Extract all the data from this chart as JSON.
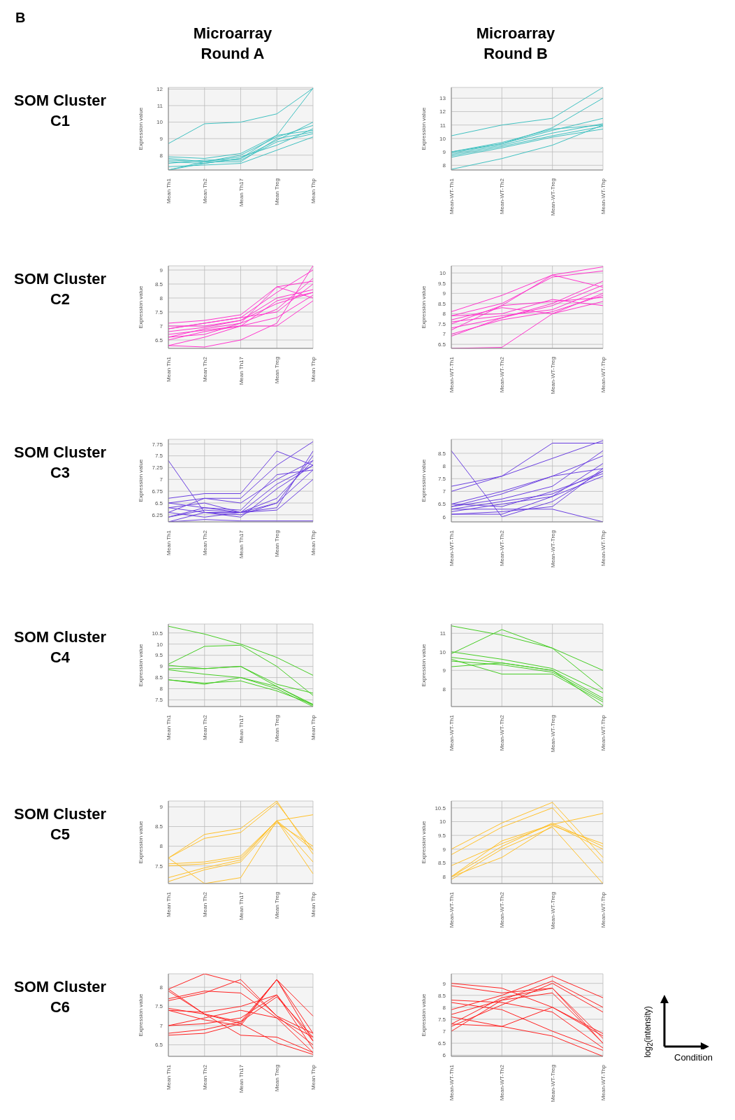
{
  "chart_data": [
    {
      "type": "line",
      "title": "Microarray Round A",
      "annotations": [
        "B",
        "SOM Cluster C1"
      ],
      "ylabel": "Expression value",
      "grid": true,
      "categories": [
        "Mean Th1",
        "Mean Th2",
        "Mean Th17",
        "Mean Treg",
        "Mean Thp"
      ],
      "ylim": [
        7.1,
        12.1
      ],
      "yticks": [
        8,
        9,
        10,
        11,
        12
      ],
      "series": [
        {
          "color": "#3fc0c0",
          "values": [
            8.7,
            9.9,
            10,
            10.5,
            12.05
          ]
        },
        {
          "color": "#3fc0c0",
          "values": [
            7.1,
            7.5,
            7.8,
            9.2,
            12.05
          ]
        },
        {
          "color": "#3fc0c0",
          "values": [
            7.9,
            7.8,
            8.1,
            9.2,
            9.5
          ]
        },
        {
          "color": "#3fc0c0",
          "values": [
            7.7,
            7.6,
            8,
            9.1,
            9.8
          ]
        },
        {
          "color": "#3fc0c0",
          "values": [
            7.6,
            7.5,
            7.8,
            8.9,
            10
          ]
        },
        {
          "color": "#3fc0c0",
          "values": [
            7.5,
            7.7,
            7.7,
            8.8,
            9.3
          ]
        },
        {
          "color": "#3fc0c0",
          "values": [
            7.3,
            7.4,
            7.5,
            8.3,
            9.1
          ]
        },
        {
          "color": "#3fc0c0",
          "values": [
            7.8,
            7.6,
            7.9,
            8.6,
            9.6
          ]
        },
        {
          "color": "#3fc0c0",
          "values": [
            7.1,
            7.6,
            7.6,
            9,
            9.4
          ]
        }
      ]
    },
    {
      "type": "line",
      "title": "Microarray Round B",
      "ylabel": "Expression value",
      "grid": true,
      "categories": [
        "Mean-WT-Th1",
        "Mean-WT-Th2",
        "Mean-WT-Treg",
        "Mean-WT-Thp"
      ],
      "ylim": [
        7.65,
        13.8
      ],
      "yticks": [
        8,
        9,
        10,
        11,
        12,
        13
      ],
      "series": [
        {
          "color": "#3fc0c0",
          "values": [
            10.2,
            11,
            11.5,
            13.8
          ]
        },
        {
          "color": "#3fc0c0",
          "values": [
            9,
            9.6,
            10.8,
            13
          ]
        },
        {
          "color": "#3fc0c0",
          "values": [
            8.9,
            9.6,
            10.6,
            11.5
          ]
        },
        {
          "color": "#3fc0c0",
          "values": [
            8.8,
            9.5,
            10.4,
            11.1
          ]
        },
        {
          "color": "#3fc0c0",
          "values": [
            8.7,
            9.4,
            10.2,
            10.9
          ]
        },
        {
          "color": "#3fc0c0",
          "values": [
            8.6,
            9.3,
            10.1,
            10.7
          ]
        },
        {
          "color": "#3fc0c0",
          "values": [
            9,
            9.7,
            10.7,
            11
          ]
        },
        {
          "color": "#3fc0c0",
          "values": [
            7.7,
            8.5,
            9.5,
            11
          ]
        }
      ]
    },
    {
      "type": "line",
      "annotations": [
        "SOM Cluster C2"
      ],
      "ylabel": "Expression value",
      "grid": true,
      "categories": [
        "Mean Th1",
        "Mean Th2",
        "Mean Th17",
        "Mean Treg",
        "Mean Thp"
      ],
      "ylim": [
        6.2,
        9.15
      ],
      "yticks": [
        6.5,
        7,
        7.5,
        8,
        8.5,
        9
      ],
      "series": [
        {
          "color": "#ff33cc",
          "values": [
            6.3,
            6.25,
            6.5,
            7.1,
            9.15
          ]
        },
        {
          "color": "#ff33cc",
          "values": [
            7.1,
            7.2,
            7.4,
            8.4,
            8.6
          ]
        },
        {
          "color": "#ff33cc",
          "values": [
            6.9,
            7.1,
            7.3,
            8.2,
            9
          ]
        },
        {
          "color": "#ff33cc",
          "values": [
            6.8,
            6.95,
            7.2,
            8,
            8.3
          ]
        },
        {
          "color": "#ff33cc",
          "values": [
            6.6,
            6.9,
            7.1,
            7.6,
            8.7
          ]
        },
        {
          "color": "#ff33cc",
          "values": [
            6.7,
            6.85,
            7,
            7.3,
            8.1
          ]
        },
        {
          "color": "#ff33cc",
          "values": [
            6.5,
            6.8,
            7,
            7,
            7.9
          ]
        },
        {
          "color": "#ff33cc",
          "values": [
            7,
            7,
            7.2,
            7.8,
            8.2
          ]
        },
        {
          "color": "#ff33cc",
          "values": [
            6.6,
            6.7,
            7.1,
            8.4,
            8
          ]
        },
        {
          "color": "#ff33cc",
          "values": [
            6.9,
            7.1,
            7.3,
            7.5,
            8.5
          ]
        },
        {
          "color": "#ff33cc",
          "values": [
            6.3,
            6.6,
            7,
            7.9,
            8.2
          ]
        }
      ]
    },
    {
      "type": "line",
      "ylabel": "Expression value",
      "grid": true,
      "categories": [
        "Mean-WT-Th1",
        "Mean-WT-Th2",
        "Mean-WT-Treg",
        "Mean-WT-Thp"
      ],
      "ylim": [
        6.3,
        10.35
      ],
      "yticks": [
        6.5,
        7,
        7.5,
        8,
        8.5,
        9,
        9.5,
        10
      ],
      "series": [
        {
          "color": "#ff33cc",
          "values": [
            6.3,
            6.35,
            8,
            8.6
          ]
        },
        {
          "color": "#ff33cc",
          "values": [
            8.1,
            8.9,
            9.9,
            10.3
          ]
        },
        {
          "color": "#ff33cc",
          "values": [
            7.9,
            8.5,
            9.8,
            10.1
          ]
        },
        {
          "color": "#ff33cc",
          "values": [
            7.5,
            8.4,
            9.9,
            9.3
          ]
        },
        {
          "color": "#ff33cc",
          "values": [
            7.9,
            8,
            8.7,
            8.4
          ]
        },
        {
          "color": "#ff33cc",
          "values": [
            7.6,
            7.9,
            8.2,
            9.2
          ]
        },
        {
          "color": "#ff33cc",
          "values": [
            7.3,
            7.8,
            8.5,
            9.6
          ]
        },
        {
          "color": "#ff33cc",
          "values": [
            7,
            7.7,
            8.1,
            8.9
          ]
        },
        {
          "color": "#ff33cc",
          "values": [
            6.9,
            7.8,
            8.4,
            9.4
          ]
        },
        {
          "color": "#ff33cc",
          "values": [
            7.7,
            8.3,
            8,
            9
          ]
        },
        {
          "color": "#ff33cc",
          "values": [
            7.2,
            8.4,
            8.6,
            8.8
          ]
        }
      ]
    },
    {
      "type": "line",
      "annotations": [
        "SOM Cluster C3"
      ],
      "ylabel": "Expression value",
      "grid": true,
      "categories": [
        "Mean Th1",
        "Mean Th2",
        "Mean Th17",
        "Mean Treg",
        "Mean Thp"
      ],
      "ylim": [
        6.1,
        7.85
      ],
      "yticks": [
        6.25,
        6.5,
        6.75,
        7,
        7.25,
        7.5,
        7.75
      ],
      "series": [
        {
          "color": "#6a3fe0",
          "values": [
            6.1,
            6.15,
            6.12,
            6.12,
            6.12
          ]
        },
        {
          "color": "#6a3fe0",
          "values": [
            7.4,
            6.3,
            6.25,
            6.5,
            7.5
          ]
        },
        {
          "color": "#6a3fe0",
          "values": [
            6.6,
            6.7,
            6.7,
            7.6,
            7.3
          ]
        },
        {
          "color": "#6a3fe0",
          "values": [
            6.5,
            6.6,
            6.6,
            7.3,
            7.8
          ]
        },
        {
          "color": "#6a3fe0",
          "values": [
            6.4,
            6.5,
            6.3,
            6.4,
            7.6
          ]
        },
        {
          "color": "#6a3fe0",
          "values": [
            6.3,
            6.6,
            6.5,
            7,
            7.4
          ]
        },
        {
          "color": "#6a3fe0",
          "values": [
            6.2,
            6.35,
            6.3,
            6.9,
            7.3
          ]
        },
        {
          "color": "#6a3fe0",
          "values": [
            6.5,
            6.4,
            6.3,
            6.6,
            7.4
          ]
        },
        {
          "color": "#6a3fe0",
          "values": [
            6.3,
            6.2,
            6.3,
            6.35,
            7
          ]
        },
        {
          "color": "#6a3fe0",
          "values": [
            6.2,
            6.4,
            6.35,
            7.1,
            7.2
          ]
        },
        {
          "color": "#6a3fe0",
          "values": [
            6.4,
            6.3,
            6.2,
            6.8,
            7.3
          ]
        },
        {
          "color": "#6a3fe0",
          "values": [
            6.1,
            6.3,
            6.3,
            6.5,
            7.2
          ]
        }
      ]
    },
    {
      "type": "line",
      "ylabel": "Expression value",
      "grid": true,
      "categories": [
        "Mean-WT-Th1",
        "Mean-WT-Th2",
        "Mean-WT-Treg",
        "Mean-WT-Thp"
      ],
      "ylim": [
        5.8,
        9.05
      ],
      "yticks": [
        6,
        6.5,
        7,
        7.5,
        8,
        8.5
      ],
      "series": [
        {
          "color": "#6a3fe0",
          "values": [
            8.6,
            6,
            6.6,
            7.8
          ]
        },
        {
          "color": "#6a3fe0",
          "values": [
            6.3,
            6.3,
            6.3,
            5.8
          ]
        },
        {
          "color": "#6a3fe0",
          "values": [
            7.2,
            7.6,
            8.9,
            8.9
          ]
        },
        {
          "color": "#6a3fe0",
          "values": [
            7,
            7.6,
            8.3,
            9
          ]
        },
        {
          "color": "#6a3fe0",
          "values": [
            6.5,
            7,
            7.6,
            8.4
          ]
        },
        {
          "color": "#6a3fe0",
          "values": [
            6.4,
            6.9,
            7.6,
            7.9
          ]
        },
        {
          "color": "#6a3fe0",
          "values": [
            6.4,
            6.7,
            7.2,
            8.6
          ]
        },
        {
          "color": "#6a3fe0",
          "values": [
            6.3,
            6.6,
            6.9,
            7.8
          ]
        },
        {
          "color": "#6a3fe0",
          "values": [
            6.2,
            6.5,
            6.8,
            7.6
          ]
        },
        {
          "color": "#6a3fe0",
          "values": [
            6.1,
            6.2,
            6.4,
            7.9
          ]
        },
        {
          "color": "#6a3fe0",
          "values": [
            6.5,
            6.4,
            7,
            7.7
          ]
        },
        {
          "color": "#6a3fe0",
          "values": [
            6.1,
            6.1,
            6.8,
            8.1
          ]
        }
      ]
    },
    {
      "type": "line",
      "annotations": [
        "SOM Cluster C4"
      ],
      "ylabel": "Expression value",
      "grid": true,
      "categories": [
        "Mean Th1",
        "Mean Th2",
        "Mean Th17",
        "Mean Treg",
        "Mean Thp"
      ],
      "ylim": [
        7.2,
        10.9
      ],
      "yticks": [
        7.5,
        8,
        8.5,
        9,
        9.5,
        10,
        10.5
      ],
      "series": [
        {
          "color": "#44cc22",
          "values": [
            10.8,
            10.45,
            10,
            9.4,
            8.6
          ]
        },
        {
          "color": "#44cc22",
          "values": [
            9.1,
            9.9,
            9.95,
            9,
            7.7
          ]
        },
        {
          "color": "#44cc22",
          "values": [
            9.05,
            8.9,
            9,
            8.2,
            7.8
          ]
        },
        {
          "color": "#44cc22",
          "values": [
            8.85,
            8.65,
            8.5,
            8.1,
            7.25
          ]
        },
        {
          "color": "#44cc22",
          "values": [
            8.9,
            8.9,
            9,
            8.1,
            7.3
          ]
        },
        {
          "color": "#44cc22",
          "values": [
            8.4,
            8.2,
            8.5,
            8,
            7.2
          ]
        },
        {
          "color": "#44cc22",
          "values": [
            8.4,
            8.25,
            8.35,
            7.9,
            7.3
          ]
        }
      ]
    },
    {
      "type": "line",
      "ylabel": "Expression value",
      "grid": true,
      "categories": [
        "Mean-WT-Th1",
        "Mean-WT-Th2",
        "Mean-WT-Treg",
        "Mean-WT-Thp"
      ],
      "ylim": [
        7.05,
        11.5
      ],
      "yticks": [
        8,
        9,
        10,
        11
      ],
      "series": [
        {
          "color": "#44cc22",
          "values": [
            11.4,
            10.9,
            10.2,
            9
          ]
        },
        {
          "color": "#44cc22",
          "values": [
            9.9,
            11.2,
            10.2,
            8
          ]
        },
        {
          "color": "#44cc22",
          "values": [
            10,
            9.6,
            9.1,
            7.8
          ]
        },
        {
          "color": "#44cc22",
          "values": [
            9.7,
            9.4,
            9,
            7.5
          ]
        },
        {
          "color": "#44cc22",
          "values": [
            9.6,
            8.8,
            8.8,
            7.3
          ]
        },
        {
          "color": "#44cc22",
          "values": [
            9.5,
            9.3,
            8.9,
            7.4
          ]
        },
        {
          "color": "#44cc22",
          "values": [
            9.2,
            9.4,
            9,
            7.1
          ]
        }
      ]
    },
    {
      "type": "line",
      "annotations": [
        "SOM Cluster C5"
      ],
      "ylabel": "Expression value",
      "grid": true,
      "categories": [
        "Mean Th1",
        "Mean Th2",
        "Mean Th17",
        "Mean Treg",
        "Mean Thp"
      ],
      "ylim": [
        7.05,
        9.15
      ],
      "yticks": [
        7.5,
        8,
        8.5,
        9
      ],
      "series": [
        {
          "color": "#ffc02a",
          "values": [
            7.7,
            8.3,
            8.45,
            9.15,
            7.8
          ]
        },
        {
          "color": "#ffc02a",
          "values": [
            7.7,
            8.2,
            8.35,
            9.1,
            7.9
          ]
        },
        {
          "color": "#ffc02a",
          "values": [
            7.55,
            7.6,
            7.75,
            8.65,
            8.8
          ]
        },
        {
          "color": "#ffc02a",
          "values": [
            7.5,
            7.55,
            7.7,
            8.65,
            7.6
          ]
        },
        {
          "color": "#ffc02a",
          "values": [
            7.2,
            7.45,
            7.65,
            8.65,
            7.3
          ]
        },
        {
          "color": "#ffc02a",
          "values": [
            7.1,
            7.4,
            7.6,
            8.6,
            8
          ]
        },
        {
          "color": "#ffc02a",
          "values": [
            7.7,
            7.05,
            7.2,
            8.65,
            7.9
          ]
        }
      ]
    },
    {
      "type": "line",
      "ylabel": "Expression value",
      "grid": true,
      "categories": [
        "Mean-WT-Th1",
        "Mean-WT-Th2",
        "Mean-WT-Treg",
        "Mean-WT-Thp"
      ],
      "ylim": [
        7.75,
        10.75
      ],
      "yticks": [
        8,
        8.5,
        9,
        9.5,
        10,
        10.5
      ],
      "series": [
        {
          "color": "#ffc02a",
          "values": [
            9,
            9.95,
            10.7,
            8.7
          ]
        },
        {
          "color": "#ffc02a",
          "values": [
            8.8,
            9.8,
            10.5,
            8.5
          ]
        },
        {
          "color": "#ffc02a",
          "values": [
            8.4,
            9.2,
            9.9,
            10.3
          ]
        },
        {
          "color": "#ffc02a",
          "values": [
            8,
            9.1,
            9.95,
            9.1
          ]
        },
        {
          "color": "#ffc02a",
          "values": [
            8,
            8.7,
            9.85,
            9.2
          ]
        },
        {
          "color": "#ffc02a",
          "values": [
            7.9,
            9,
            9.8,
            7.75
          ]
        },
        {
          "color": "#ffc02a",
          "values": [
            8,
            9.3,
            9.9,
            9
          ]
        }
      ]
    },
    {
      "type": "line",
      "annotations": [
        "SOM Cluster C6"
      ],
      "ylabel": "Expression value",
      "grid": true,
      "categories": [
        "Mean Th1",
        "Mean Th2",
        "Mean Th17",
        "Mean Treg",
        "Mean Thp"
      ],
      "ylim": [
        6.2,
        8.35
      ],
      "yticks": [
        6.5,
        7,
        7.5,
        8
      ],
      "series": [
        {
          "color": "#ff2020",
          "values": [
            7.95,
            8.35,
            8.1,
            7.25,
            6.8
          ]
        },
        {
          "color": "#ff2020",
          "values": [
            7.9,
            7.3,
            7.1,
            8.2,
            7.25
          ]
        },
        {
          "color": "#ff2020",
          "values": [
            7.65,
            7.85,
            8.2,
            7.25,
            6.5
          ]
        },
        {
          "color": "#ff2020",
          "values": [
            7.7,
            7.9,
            7.85,
            7.2,
            6.7
          ]
        },
        {
          "color": "#ff2020",
          "values": [
            7.4,
            7.35,
            7.5,
            7.8,
            6.4
          ]
        },
        {
          "color": "#ff2020",
          "values": [
            7.4,
            7.15,
            7,
            8.2,
            6.8
          ]
        },
        {
          "color": "#ff2020",
          "values": [
            7,
            7.05,
            7.2,
            7.8,
            6.6
          ]
        },
        {
          "color": "#ff2020",
          "values": [
            7,
            7.2,
            7.4,
            7.2,
            6.3
          ]
        },
        {
          "color": "#ff2020",
          "values": [
            6.8,
            6.9,
            7.1,
            7.75,
            6.7
          ]
        },
        {
          "color": "#ff2020",
          "values": [
            6.75,
            6.8,
            7.05,
            8.2,
            6.6
          ]
        },
        {
          "color": "#ff2020",
          "values": [
            7.95,
            7.3,
            6.75,
            6.7,
            6.3
          ]
        },
        {
          "color": "#ff2020",
          "values": [
            7.45,
            7.3,
            7.05,
            6.55,
            6.25
          ]
        }
      ]
    },
    {
      "type": "line",
      "ylabel": "Expression value",
      "grid": true,
      "categories": [
        "Mean-WT-Th1",
        "Mean-WT-Th2",
        "Mean-WT-Treg",
        "Mean-WT-Thp"
      ],
      "ylim": [
        5.95,
        9.4
      ],
      "yticks": [
        6,
        6.5,
        7,
        7.5,
        8,
        8.5,
        9
      ],
      "series": [
        {
          "color": "#ff2020",
          "values": [
            9,
            8.8,
            8,
            6.8
          ]
        },
        {
          "color": "#ff2020",
          "values": [
            8.9,
            8.6,
            8.8,
            6.5
          ]
        },
        {
          "color": "#ff2020",
          "values": [
            8.3,
            8.2,
            7.8,
            6.3
          ]
        },
        {
          "color": "#ff2020",
          "values": [
            7.9,
            8.5,
            9.3,
            8.4
          ]
        },
        {
          "color": "#ff2020",
          "values": [
            7.7,
            8.3,
            9.1,
            8
          ]
        },
        {
          "color": "#ff2020",
          "values": [
            7.2,
            8.1,
            9,
            7.8
          ]
        },
        {
          "color": "#ff2020",
          "values": [
            7.3,
            8.4,
            8.8,
            6.7
          ]
        },
        {
          "color": "#ff2020",
          "values": [
            7,
            8.3,
            8.6,
            6.5
          ]
        },
        {
          "color": "#ff2020",
          "values": [
            7.3,
            7.2,
            8,
            6.9
          ]
        },
        {
          "color": "#ff2020",
          "values": [
            8.2,
            7.9,
            7,
            6.2
          ]
        },
        {
          "color": "#ff2020",
          "values": [
            7.6,
            7.2,
            6.8,
            5.95
          ]
        }
      ]
    },
    {
      "type": "other",
      "xlabel": "Condition",
      "ylabel": "log$_{2}$(intensity)"
    }
  ]
}
